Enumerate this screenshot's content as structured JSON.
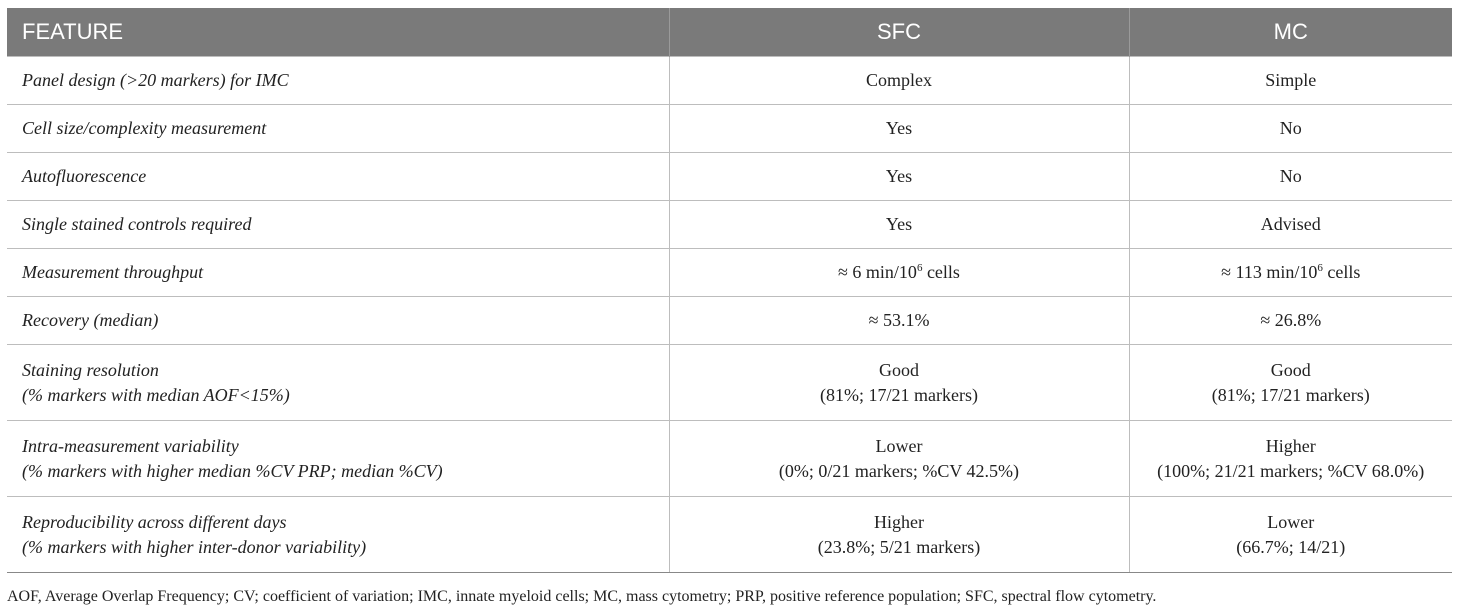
{
  "header": {
    "feature": "FEATURE",
    "sfc": "SFC",
    "mc": "MC"
  },
  "rows": [
    {
      "feature": [
        "Panel design (>20 markers) for IMC"
      ],
      "sfc": [
        "Complex"
      ],
      "mc": [
        "Simple"
      ]
    },
    {
      "feature": [
        "Cell size/complexity measurement"
      ],
      "sfc": [
        "Yes"
      ],
      "mc": [
        "No"
      ]
    },
    {
      "feature": [
        "Autofluorescence"
      ],
      "sfc": [
        "Yes"
      ],
      "mc": [
        "No"
      ]
    },
    {
      "feature": [
        "Single stained controls required"
      ],
      "sfc": [
        "Yes"
      ],
      "mc": [
        "Advised"
      ]
    },
    {
      "feature": [
        "Measurement throughput"
      ],
      "sfc": [
        "≈ 6 min/10",
        "6",
        " cells"
      ],
      "mc": [
        "≈ 113 min/10",
        "6",
        " cells"
      ]
    },
    {
      "feature": [
        "Recovery (median)"
      ],
      "sfc": [
        "≈ 53.1%"
      ],
      "mc": [
        "≈ 26.8%"
      ]
    },
    {
      "feature": [
        "Staining resolution",
        "(% markers with median AOF<15%)"
      ],
      "sfc": [
        "Good",
        "(81%; 17/21 markers)"
      ],
      "mc": [
        "Good",
        "(81%; 17/21 markers)"
      ]
    },
    {
      "feature": [
        "Intra-measurement variability",
        "(% markers with higher median %CV PRP; median %CV)"
      ],
      "sfc": [
        "Lower",
        "(0%; 0/21 markers; %CV 42.5%)"
      ],
      "mc": [
        "Higher",
        "(100%; 21/21 markers; %CV 68.0%)"
      ]
    },
    {
      "feature": [
        "Reproducibility across different days",
        "(% markers with higher inter-donor variability)"
      ],
      "sfc": [
        "Higher",
        "(23.8%; 5/21 markers)"
      ],
      "mc": [
        "Lower",
        "(66.7%; 14/21)"
      ]
    }
  ],
  "footnote": "AOF, Average Overlap Frequency; CV; coefficient of variation; IMC, innate myeloid cells; MC, mass cytometry; PRP, positive reference population; SFC, spectral flow cytometry."
}
